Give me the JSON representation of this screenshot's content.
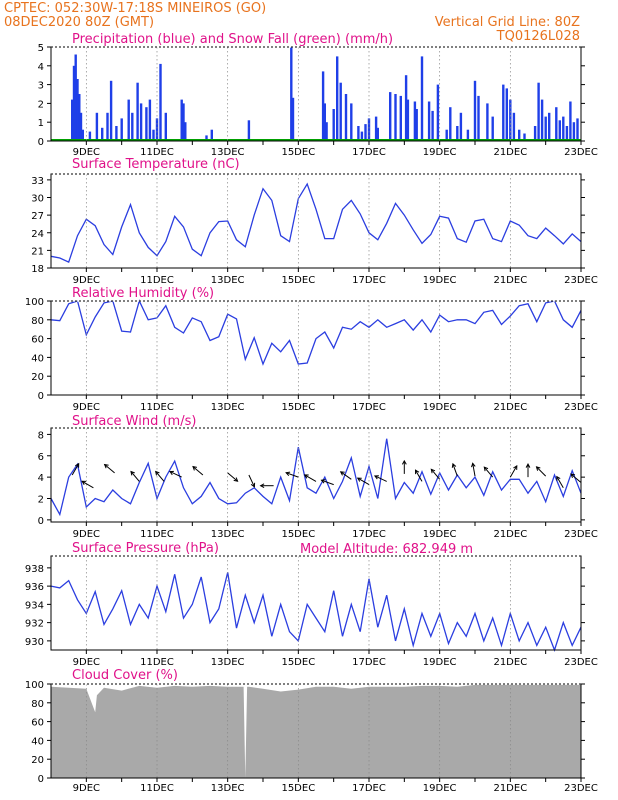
{
  "header": {
    "station_line": "CPTEC:   052:30W-17:18S  MINEIROS (GO)",
    "date_line": "08DEC2020 80Z (GMT)",
    "grid_note": "Vertical Grid Line: 80Z",
    "code": "TQ0126L028",
    "model_altitude": "Model Altitude: 682.949 m"
  },
  "colors": {
    "header_text": "#e8731e",
    "title_text": "#e0128a",
    "series_line": "#2b3ee0",
    "precip_bar": "#1f3fe8",
    "snow": "#00a000",
    "cloud_fill": "#a9a9a9",
    "arrow": "#000000",
    "grid": "#888888"
  },
  "x_axis": {
    "start_day": 8,
    "end_day": 23,
    "tick_labels": [
      "9DEC",
      "11DEC",
      "13DEC",
      "15DEC",
      "17DEC",
      "19DEC",
      "21DEC",
      "23DEC"
    ]
  },
  "chart_data": [
    {
      "id": "precip",
      "type": "bar",
      "title": "Precipitation (blue) and Snow Fall (green) (mm/h)",
      "ylim": [
        0,
        5
      ],
      "yticks": [
        0,
        1,
        2,
        3,
        4,
        5
      ],
      "x_unit": "day of December 2020",
      "series": [
        {
          "name": "Precipitation",
          "x": [
            8.6,
            8.65,
            8.7,
            8.75,
            8.8,
            8.85,
            8.9,
            9.1,
            9.3,
            9.45,
            9.6,
            9.7,
            9.85,
            10.0,
            10.2,
            10.3,
            10.45,
            10.55,
            10.7,
            10.8,
            10.9,
            11.0,
            11.1,
            11.25,
            11.7,
            11.75,
            11.8,
            12.4,
            12.55,
            13.6,
            14.8,
            14.85,
            15.7,
            15.75,
            15.8,
            16.0,
            16.1,
            16.2,
            16.35,
            16.5,
            16.7,
            16.8,
            16.9,
            17.0,
            17.2,
            17.25,
            17.6,
            17.75,
            17.9,
            18.05,
            18.1,
            18.3,
            18.35,
            18.5,
            18.7,
            18.8,
            18.95,
            19.2,
            19.3,
            19.5,
            19.6,
            19.8,
            20.0,
            20.1,
            20.35,
            20.5,
            20.8,
            20.9,
            21.0,
            21.1,
            21.25,
            21.4,
            21.7,
            21.8,
            21.9,
            22.0,
            22.1,
            22.3,
            22.4,
            22.5,
            22.6,
            22.7,
            22.8,
            22.9
          ],
          "values": [
            2.2,
            4.0,
            4.6,
            3.3,
            2.5,
            1.5,
            0.6,
            0.5,
            1.5,
            0.7,
            1.5,
            3.2,
            0.8,
            1.2,
            2.2,
            1.5,
            3.1,
            2.0,
            1.8,
            2.2,
            0.6,
            1.2,
            4.1,
            1.5,
            2.2,
            2.0,
            1.0,
            0.3,
            0.6,
            1.1,
            5.0,
            2.3,
            3.7,
            2.0,
            1.0,
            1.7,
            4.5,
            3.1,
            2.5,
            2.0,
            0.8,
            0.5,
            0.9,
            1.2,
            1.3,
            0.7,
            2.6,
            2.5,
            2.4,
            3.5,
            2.2,
            2.1,
            1.7,
            4.5,
            2.1,
            1.6,
            3.0,
            0.6,
            1.8,
            0.8,
            1.5,
            0.6,
            3.2,
            2.4,
            2.0,
            1.3,
            3.0,
            2.8,
            2.2,
            1.5,
            0.6,
            0.4,
            0.8,
            3.1,
            2.2,
            1.3,
            1.5,
            1.8,
            1.1,
            1.3,
            0.8,
            2.1,
            1.0,
            1.2
          ]
        },
        {
          "name": "Snow Fall",
          "x": [
            8.0,
            23.0
          ],
          "values": [
            0,
            0
          ]
        }
      ]
    },
    {
      "id": "temperature",
      "type": "line",
      "title": "Surface Temperature (nC)",
      "ylim": [
        18,
        34
      ],
      "yticks": [
        18,
        21,
        24,
        27,
        30,
        33
      ],
      "series": [
        {
          "name": "Surface Temperature",
          "x": [
            8.0,
            8.25,
            8.5,
            8.75,
            9.0,
            9.25,
            9.5,
            9.75,
            10.0,
            10.25,
            10.5,
            10.75,
            11.0,
            11.25,
            11.5,
            11.75,
            12.0,
            12.25,
            12.5,
            12.75,
            13.0,
            13.25,
            13.5,
            13.75,
            14.0,
            14.25,
            14.5,
            14.75,
            15.0,
            15.25,
            15.5,
            15.75,
            16.0,
            16.25,
            16.5,
            16.75,
            17.0,
            17.25,
            17.5,
            17.75,
            18.0,
            18.25,
            18.5,
            18.75,
            19.0,
            19.25,
            19.5,
            19.75,
            20.0,
            20.25,
            20.5,
            20.75,
            21.0,
            21.25,
            21.5,
            21.75,
            22.0,
            22.25,
            22.5,
            22.75,
            23.0
          ],
          "values": [
            20.0,
            19.7,
            19.0,
            23.5,
            26.3,
            25.2,
            22.0,
            20.3,
            25.0,
            28.8,
            24.0,
            21.5,
            20.1,
            22.5,
            26.8,
            25.0,
            21.2,
            20.1,
            24.0,
            25.9,
            26.0,
            22.8,
            21.6,
            27.0,
            31.5,
            29.5,
            23.5,
            22.5,
            29.8,
            32.3,
            28.0,
            23.0,
            23.0,
            28.0,
            29.5,
            27.2,
            24.0,
            22.8,
            25.6,
            29.0,
            27.0,
            24.5,
            22.2,
            23.7,
            26.8,
            26.5,
            23.0,
            22.4,
            26.0,
            26.3,
            23.0,
            22.5,
            26.0,
            25.3,
            23.5,
            23.0,
            24.8,
            23.5,
            22.1,
            23.8,
            22.5
          ]
        }
      ]
    },
    {
      "id": "humidity",
      "type": "line",
      "title": "Relative Humidity (%)",
      "ylim": [
        0,
        100
      ],
      "yticks": [
        0,
        20,
        40,
        60,
        80,
        100
      ],
      "series": [
        {
          "name": "Relative Humidity",
          "x": [
            8.0,
            8.25,
            8.5,
            8.75,
            9.0,
            9.25,
            9.5,
            9.75,
            10.0,
            10.25,
            10.5,
            10.75,
            11.0,
            11.25,
            11.5,
            11.75,
            12.0,
            12.25,
            12.5,
            12.75,
            13.0,
            13.25,
            13.5,
            13.75,
            14.0,
            14.25,
            14.5,
            14.75,
            15.0,
            15.25,
            15.5,
            15.75,
            16.0,
            16.25,
            16.5,
            16.75,
            17.0,
            17.25,
            17.5,
            17.75,
            18.0,
            18.25,
            18.5,
            18.75,
            19.0,
            19.25,
            19.5,
            19.75,
            20.0,
            20.25,
            20.5,
            20.75,
            21.0,
            21.25,
            21.5,
            21.75,
            22.0,
            22.25,
            22.5,
            22.75,
            23.0
          ],
          "values": [
            80,
            79,
            97,
            100,
            64,
            83,
            98,
            100,
            68,
            67,
            100,
            80,
            82,
            95,
            72,
            66,
            82,
            78,
            58,
            62,
            86,
            81,
            38,
            61,
            33,
            55,
            46,
            58,
            33,
            34,
            60,
            67,
            50,
            72,
            70,
            78,
            72,
            80,
            72,
            76,
            80,
            69,
            80,
            67,
            85,
            78,
            80,
            80,
            76,
            88,
            90,
            75,
            84,
            95,
            97,
            78,
            98,
            100,
            80,
            72,
            90
          ]
        }
      ]
    },
    {
      "id": "wind",
      "type": "line",
      "title": "Surface Wind (m/s)",
      "ylim": [
        -0.2,
        8.6
      ],
      "yticks": [
        0,
        2,
        4,
        6,
        8
      ],
      "series": [
        {
          "name": "Surface Wind",
          "x": [
            8.0,
            8.25,
            8.5,
            8.75,
            9.0,
            9.25,
            9.5,
            9.75,
            10.0,
            10.25,
            10.5,
            10.75,
            11.0,
            11.25,
            11.5,
            11.75,
            12.0,
            12.25,
            12.5,
            12.75,
            13.0,
            13.25,
            13.5,
            13.75,
            14.0,
            14.25,
            14.5,
            14.75,
            15.0,
            15.25,
            15.5,
            15.75,
            16.0,
            16.25,
            16.5,
            16.75,
            17.0,
            17.25,
            17.5,
            17.75,
            18.0,
            18.25,
            18.5,
            18.75,
            19.0,
            19.25,
            19.5,
            19.75,
            20.0,
            20.25,
            20.5,
            20.75,
            21.0,
            21.25,
            21.5,
            21.75,
            22.0,
            22.25,
            22.5,
            22.75,
            23.0
          ],
          "values": [
            2.0,
            0.5,
            4.0,
            5.2,
            1.2,
            2.0,
            1.7,
            2.8,
            2.0,
            1.5,
            3.5,
            5.3,
            2.0,
            4.0,
            5.5,
            3.0,
            1.5,
            2.2,
            3.5,
            2.0,
            1.5,
            1.6,
            2.5,
            3.0,
            2.2,
            1.5,
            4.0,
            1.8,
            6.8,
            3.0,
            2.5,
            4.0,
            2.0,
            3.6,
            5.8,
            2.2,
            5.0,
            2.0,
            7.6,
            2.0,
            3.5,
            2.5,
            4.5,
            2.4,
            4.4,
            2.8,
            4.2,
            3.0,
            4.0,
            2.3,
            4.5,
            2.8,
            3.8,
            3.8,
            2.5,
            3.6,
            1.7,
            4.2,
            2.2,
            4.6,
            2.5
          ]
        }
      ],
      "arrows": {
        "x": [
          8.6,
          9.2,
          9.8,
          10.5,
          11.2,
          11.7,
          12.3,
          13.0,
          13.6,
          14.3,
          15.0,
          15.5,
          16.0,
          16.5,
          17.0,
          17.5,
          18.0,
          18.5,
          19.0,
          19.5,
          20.0,
          20.5,
          21.0,
          21.5,
          22.0,
          22.5,
          23.0
        ],
        "speed": [
          4.2,
          3.0,
          4.4,
          3.6,
          3.6,
          4.0,
          4.2,
          4.4,
          4.2,
          3.2,
          4.0,
          3.6,
          3.3,
          3.8,
          3.3,
          3.6,
          4.3,
          3.6,
          3.8,
          4.1,
          4.1,
          4.0,
          4.0,
          4.0,
          4.1,
          3.0,
          3.5
        ],
        "direction_deg": [
          300,
          210,
          220,
          230,
          230,
          205,
          220,
          40,
          65,
          180,
          200,
          210,
          200,
          215,
          210,
          205,
          270,
          240,
          230,
          250,
          260,
          230,
          300,
          270,
          225,
          240,
          220
        ]
      }
    },
    {
      "id": "pressure",
      "type": "line",
      "title": "Surface Pressure (hPa)",
      "ylim": [
        929,
        939.3
      ],
      "yticks": [
        930,
        932,
        934,
        936,
        938
      ],
      "series": [
        {
          "name": "Surface Pressure",
          "x": [
            8.0,
            8.25,
            8.5,
            8.75,
            9.0,
            9.25,
            9.5,
            9.75,
            10.0,
            10.25,
            10.5,
            10.75,
            11.0,
            11.25,
            11.5,
            11.75,
            12.0,
            12.25,
            12.5,
            12.75,
            13.0,
            13.25,
            13.5,
            13.75,
            14.0,
            14.25,
            14.5,
            14.75,
            15.0,
            15.25,
            15.5,
            15.75,
            16.0,
            16.25,
            16.5,
            16.75,
            17.0,
            17.25,
            17.5,
            17.75,
            18.0,
            18.25,
            18.5,
            18.75,
            19.0,
            19.25,
            19.5,
            19.75,
            20.0,
            20.25,
            20.5,
            20.75,
            21.0,
            21.25,
            21.5,
            21.75,
            22.0,
            22.25,
            22.5,
            22.75,
            23.0
          ],
          "values": [
            936.0,
            935.8,
            936.6,
            934.5,
            933.0,
            935.4,
            931.8,
            933.5,
            935.5,
            931.8,
            934.0,
            932.5,
            936.0,
            933.2,
            937.3,
            932.5,
            934.0,
            937.0,
            932.0,
            933.5,
            937.5,
            931.4,
            935.0,
            932.0,
            935.0,
            930.5,
            934.0,
            931.0,
            930.0,
            934.0,
            932.5,
            931.0,
            935.5,
            930.5,
            934.0,
            931.0,
            936.8,
            931.5,
            935.0,
            930.0,
            933.5,
            929.5,
            933.0,
            930.5,
            933.0,
            929.7,
            932.0,
            930.5,
            933.0,
            930.0,
            932.5,
            929.5,
            933.0,
            930.0,
            932.0,
            929.5,
            931.5,
            929.0,
            932.0,
            929.5,
            931.5
          ]
        }
      ]
    },
    {
      "id": "cloud",
      "type": "area",
      "title": "Cloud Cover (%)",
      "ylim": [
        0,
        100
      ],
      "yticks": [
        0,
        20,
        40,
        60,
        80,
        100
      ],
      "series": [
        {
          "name": "Cloud Cover",
          "x": [
            8.0,
            8.5,
            9.0,
            9.2,
            9.25,
            9.3,
            9.5,
            10.0,
            10.5,
            11.0,
            11.5,
            12.0,
            12.5,
            13.0,
            13.45,
            13.5,
            13.55,
            13.6,
            14.0,
            14.5,
            15.0,
            15.5,
            16.0,
            16.5,
            17.0,
            17.5,
            18.0,
            18.5,
            19.0,
            19.5,
            20.0,
            20.5,
            21.0,
            21.5,
            22.0,
            22.5,
            23.0
          ],
          "values": [
            97,
            96,
            95,
            75,
            70,
            88,
            96,
            93,
            98,
            96,
            98,
            97,
            98,
            97,
            97,
            0,
            97,
            97,
            95,
            92,
            94,
            97,
            97,
            95,
            97,
            97,
            97,
            98,
            98,
            97,
            99,
            99,
            99,
            99,
            99,
            99,
            99
          ]
        }
      ]
    }
  ]
}
